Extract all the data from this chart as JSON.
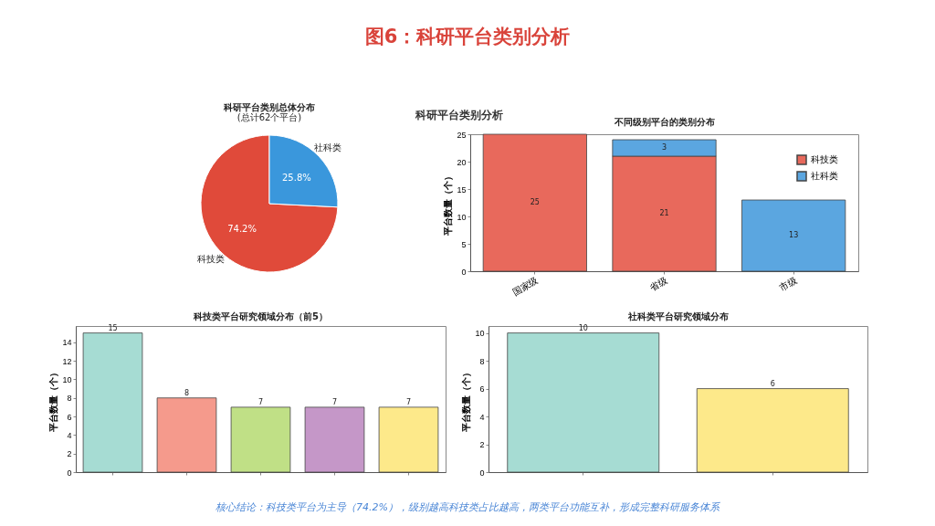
{
  "chart_data": [
    {
      "type": "other",
      "title": "图6：科研平台类别分析",
      "subtitle": "科研平台类别分析",
      "annotations": [
        "核心结论：科技类平台为主导（74.2%），级别越高科技类占比越高，两类平台功能互补，形成完整科研服务体系"
      ]
    },
    {
      "type": "pie",
      "title": "科研平台类别总体分布",
      "subtitle": "(总计62个平台)",
      "categories": [
        "科技类",
        "社科类"
      ],
      "values": [
        74.2,
        25.8
      ],
      "colors": [
        "#e04a3a",
        "#3a97dc"
      ],
      "value_labels": [
        "74.2%",
        "25.8%"
      ]
    },
    {
      "type": "bar",
      "title": "不同级别平台的类别分布",
      "ylabel": "平台数量（个）",
      "categories": [
        "国家级",
        "省级",
        "市级"
      ],
      "stacked": true,
      "legend": "top right",
      "data_labels": true,
      "ylim": [
        0,
        25
      ],
      "yticks": [
        0,
        5,
        10,
        15,
        20,
        25
      ],
      "series": [
        {
          "name": "科技类",
          "color": "#e8695c",
          "values": [
            25,
            21,
            null
          ]
        },
        {
          "name": "社科类",
          "color": "#5ba6e0",
          "values": [
            null,
            3,
            13
          ]
        }
      ]
    },
    {
      "type": "bar",
      "title": "科技类平台研究领域分布（前5）",
      "ylabel": "平台数量（个）",
      "categories": [
        null,
        null,
        null,
        null,
        null
      ],
      "values": [
        15,
        8,
        7,
        7,
        7
      ],
      "colors": [
        "#a6dcd3",
        "#f59a8c",
        "#c0e086",
        "#c597c8",
        "#fde98a"
      ],
      "data_labels": true,
      "ylim": [
        0,
        15.75
      ],
      "yticks": [
        0,
        2,
        4,
        6,
        8,
        10,
        12,
        14
      ]
    },
    {
      "type": "bar",
      "title": "社科类平台研究领域分布",
      "ylabel": "平台数量（个）",
      "categories": [
        null,
        null
      ],
      "values": [
        10,
        6
      ],
      "colors": [
        "#a6dcd3",
        "#fde98a"
      ],
      "data_labels": true,
      "ylim": [
        0,
        10.5
      ],
      "yticks": [
        0,
        2,
        4,
        6,
        8,
        10
      ]
    }
  ]
}
